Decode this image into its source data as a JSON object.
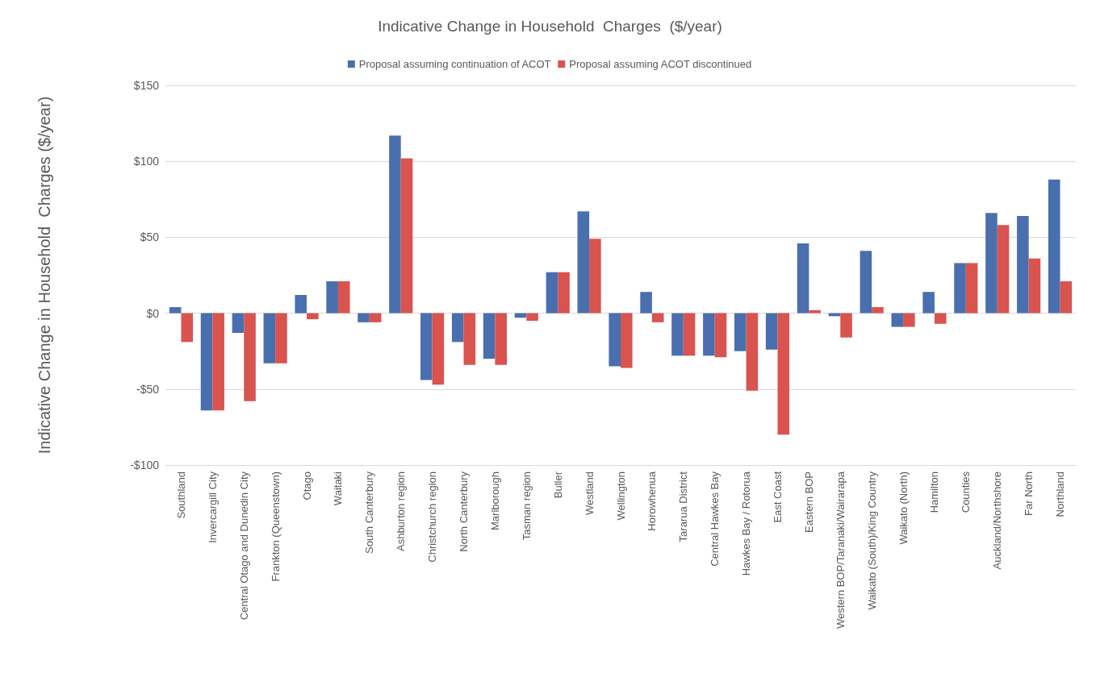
{
  "chart_data": {
    "type": "bar",
    "title": "Indicative Change in Household  Charges  ($/year)",
    "ylabel": "Indicative Change in Household  Charges ($/year)",
    "categories": [
      "Southland",
      "Invercargill City",
      "Central Otago and Dunedin City",
      "Frankton (Queenstown)",
      "Otago",
      "Waitaki",
      "South Canterbury",
      "Ashburton region",
      "Christchurch region",
      "North Canterbury",
      "Marlborough",
      "Tasman region",
      "Buller",
      "Westland",
      "Wellington",
      "Horowhenua",
      "Tararua District",
      "Central Hawkes Bay",
      "Hawkes Bay / Rotorua",
      "East Coast",
      "Eastern BOP",
      "Western BOP/Taranaki/Wairarapa",
      "Waikato (South)/King Country",
      "Waikato (North)",
      "Hamilton",
      "Counties",
      "Auckland/Northshore",
      "Far North",
      "Northland"
    ],
    "series": [
      {
        "name": "Proposal assuming continuation of ACOT",
        "color": "#4a6fae",
        "values": [
          4,
          -64,
          -13,
          -33,
          12,
          21,
          -6,
          117,
          -44,
          -19,
          -30,
          -3,
          27,
          67,
          -35,
          14,
          -28,
          -28,
          -25,
          -24,
          46,
          -2,
          41,
          -9,
          14,
          33,
          66,
          64,
          88
        ]
      },
      {
        "name": "Proposal assuming ACOT discontinued",
        "color": "#d9534f",
        "values": [
          -19,
          -64,
          -58,
          -33,
          -4,
          21,
          -6,
          102,
          -47,
          -34,
          -34,
          -5,
          27,
          49,
          -36,
          -6,
          -28,
          -29,
          -51,
          -80,
          2,
          -16,
          4,
          -9,
          -7,
          33,
          58,
          36,
          21
        ]
      }
    ],
    "ylim": [
      -100,
      150
    ],
    "yticks": [
      {
        "value": -100,
        "label": "-$100"
      },
      {
        "value": -50,
        "label": "-$50"
      },
      {
        "value": 0,
        "label": "$0"
      },
      {
        "value": 50,
        "label": "$50"
      },
      {
        "value": 100,
        "label": "$100"
      },
      {
        "value": 150,
        "label": "$150"
      }
    ],
    "grid": "y",
    "legend": "top"
  }
}
